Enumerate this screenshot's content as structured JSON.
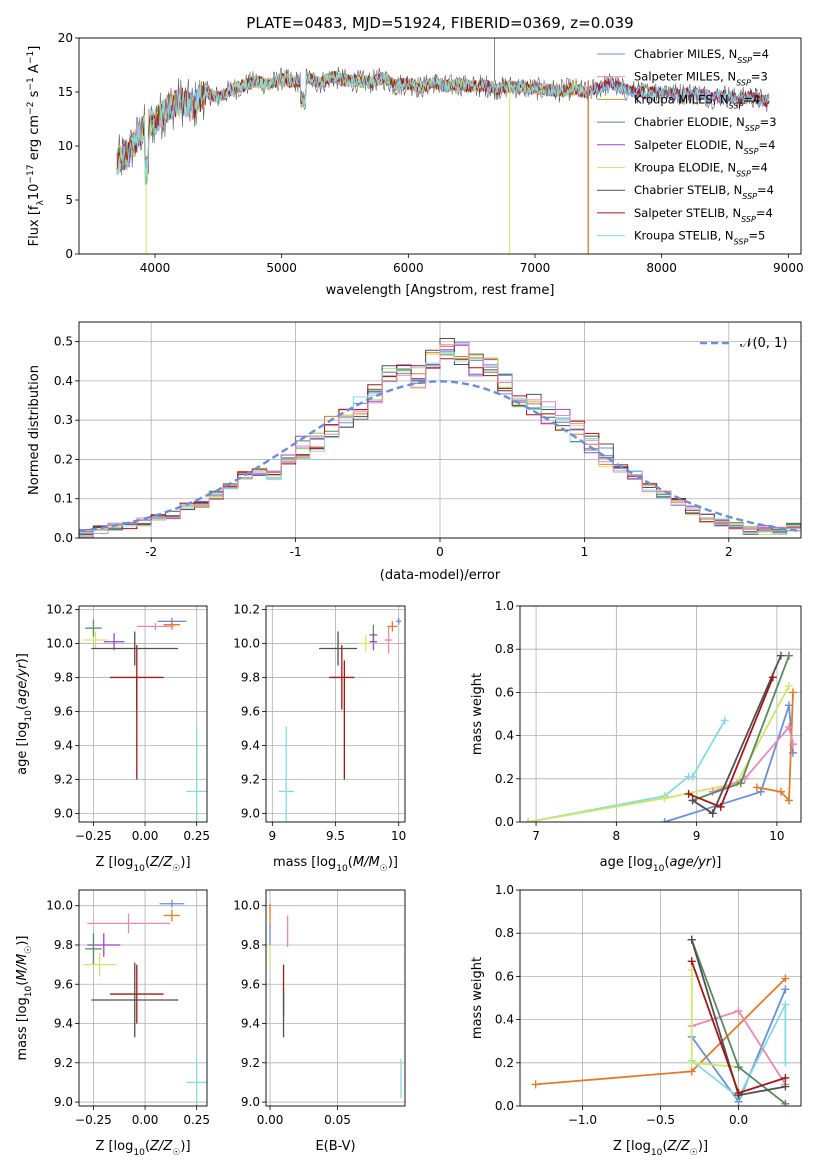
{
  "colors": {
    "blue": "#6b8fd6",
    "orange": "#e07b2a",
    "green": "#5a8a5e",
    "purple": "#9b45c8",
    "yellowgreen": "#cfe66a",
    "gray": "#505050",
    "darkred": "#a01818",
    "cyan": "#85dbe0",
    "pink": "#e68ab0",
    "olive": "#b8a030",
    "grid": "#b0b0b0"
  },
  "chart_data": [
    {
      "id": "spectrum",
      "type": "line",
      "title": "PLATE=0483, MJD=51924, FIBERID=0369, z=0.039",
      "xlabel": "wavelength [Angstrom, rest frame]",
      "ylabel": "Flux [fλ10⁻¹⁷ erg cm⁻² s⁻¹ A⁻¹]",
      "xlim": [
        3400,
        9100
      ],
      "ylim": [
        0,
        20
      ],
      "xticks": [
        4000,
        5000,
        6000,
        7000,
        8000,
        9000
      ],
      "yticks": [
        0,
        5,
        10,
        15,
        20
      ],
      "grid": false,
      "legend_loc": "right",
      "series": [
        {
          "name": "Chabrier MILES, N_SSP=4",
          "color": "#6b8fd6"
        },
        {
          "name": "Salpeter MILES, N_SSP=3",
          "color": "#e68ab0"
        },
        {
          "name": "Kroupa MILES, N_SSP=4",
          "color": "#b8a030"
        },
        {
          "name": "Chabrier ELODIE, N_SSP=3",
          "color": "#5a8a5e"
        },
        {
          "name": "Salpeter ELODIE, N_SSP=4",
          "color": "#9b45c8"
        },
        {
          "name": "Kroupa ELODIE, N_SSP=4",
          "color": "#cfe66a"
        },
        {
          "name": "Chabrier STELIB, N_SSP=4",
          "color": "#505050"
        },
        {
          "name": "Salpeter STELIB, N_SSP=4",
          "color": "#a01818"
        },
        {
          "name": "Kroupa STELIB, N_SSP=5",
          "color": "#85dbe0"
        }
      ],
      "envelope": {
        "x": [
          3700,
          3800,
          3900,
          4000,
          4100,
          4200,
          4300,
          4400,
          4500,
          4600,
          4700,
          4800,
          4900,
          5000,
          5100,
          5200,
          5300,
          5400,
          5500,
          5600,
          5700,
          5800,
          5900,
          6000,
          6100,
          6200,
          6300,
          6400,
          6500,
          6600,
          6700,
          6800,
          6900,
          7000,
          7100,
          7200,
          7300,
          7400,
          7500,
          7600,
          7700,
          7800,
          7900,
          8000,
          8100,
          8200,
          8300,
          8400,
          8500,
          8600,
          8700,
          8800
        ],
        "y": [
          8.5,
          9.5,
          11.5,
          12.3,
          13.5,
          14.2,
          13.6,
          15.0,
          14.5,
          15.2,
          15.6,
          16.0,
          15.7,
          16.2,
          15.9,
          16.3,
          15.8,
          16.4,
          16.1,
          16.0,
          15.9,
          16.3,
          15.6,
          15.8,
          15.4,
          15.9,
          15.5,
          15.7,
          15.5,
          15.6,
          15.3,
          15.5,
          15.4,
          15.3,
          15.2,
          15.1,
          15.3,
          15.0,
          15.4,
          15.8,
          15.2,
          15.0,
          14.9,
          15.1,
          14.8,
          14.9,
          14.8,
          14.5,
          14.7,
          14.3,
          14.6,
          14.2
        ]
      }
    },
    {
      "id": "residuals",
      "type": "line",
      "xlabel": "(data-model)/error",
      "ylabel": "Normed distribution",
      "xlim": [
        -2.5,
        2.5
      ],
      "ylim": [
        0,
        0.55
      ],
      "xticks": [
        -2,
        -1,
        0,
        1,
        2
      ],
      "yticks": [
        0.0,
        0.1,
        0.2,
        0.3,
        0.4,
        0.5
      ],
      "grid": true,
      "legend": "𝒩(0, 1)",
      "hist_edges_start": -2.5,
      "hist_bin_width": 0.1,
      "hist_values": [
        0.01,
        0.02,
        0.03,
        0.03,
        0.04,
        0.05,
        0.06,
        0.08,
        0.09,
        0.11,
        0.13,
        0.16,
        0.17,
        0.16,
        0.2,
        0.23,
        0.25,
        0.28,
        0.31,
        0.33,
        0.37,
        0.42,
        0.44,
        0.41,
        0.45,
        0.48,
        0.47,
        0.44,
        0.43,
        0.39,
        0.36,
        0.34,
        0.32,
        0.3,
        0.27,
        0.24,
        0.21,
        0.18,
        0.16,
        0.13,
        0.11,
        0.09,
        0.07,
        0.05,
        0.04,
        0.03,
        0.02,
        0.02,
        0.02,
        0.03
      ]
    },
    {
      "id": "age_vs_Z",
      "type": "scatter",
      "xlabel": "Z [log₁₀(Z/Z☉)]",
      "ylabel": "age  [log₁₀(age/yr)]",
      "xlim": [
        -0.32,
        0.3
      ],
      "ylim": [
        8.95,
        10.22
      ],
      "xticks": [
        -0.25,
        0.0,
        0.25
      ],
      "xticklabels": [
        "−0.25",
        "0.00",
        "0.25"
      ],
      "yticks": [
        9.0,
        9.2,
        9.4,
        9.6,
        9.8,
        10.0,
        10.2
      ],
      "grid": true,
      "points": [
        {
          "color": "#6b8fd6",
          "x": 0.13,
          "xerr": 0.07,
          "y": 10.13,
          "yerr": 0.02
        },
        {
          "color": "#e07b2a",
          "x": 0.13,
          "xerr": 0.04,
          "y": 10.11,
          "yerr": 0.03
        },
        {
          "color": "#e68ab0",
          "x": 0.05,
          "xerr": 0.09,
          "y": 10.1,
          "yerr": 0.02
        },
        {
          "color": "#5a8a5e",
          "x": -0.25,
          "xerr": 0.04,
          "y": 10.09,
          "yerr": 0.05
        },
        {
          "color": "#cfe66a",
          "x": -0.24,
          "xerr": 0.06,
          "y": 10.02,
          "yerr": 0.05
        },
        {
          "color": "#9b45c8",
          "x": -0.15,
          "xerr": 0.05,
          "y": 10.01,
          "yerr": 0.05
        },
        {
          "color": "#505050",
          "x": -0.05,
          "xerr": 0.21,
          "y": 9.97,
          "yerr": 0.1
        },
        {
          "color": "#a01818",
          "x": -0.04,
          "xerr": 0.13,
          "y": 9.8,
          "yerr": 0.19
        },
        {
          "color": "#a01818",
          "x": -0.04,
          "xerr": 0.0,
          "y": 9.5,
          "yerr": 0.3
        },
        {
          "color": "#85dbe0",
          "x": 0.25,
          "xerr": 0.05,
          "y": 9.13,
          "yerr": 0.38
        }
      ]
    },
    {
      "id": "age_vs_mass",
      "type": "scatter",
      "xlabel": "mass [log₁₀(M/M☉)]",
      "xlim": [
        8.95,
        10.05
      ],
      "ylim": [
        8.95,
        10.22
      ],
      "xticks": [
        9.0,
        9.5,
        10.0
      ],
      "yticks": [
        9.0,
        9.2,
        9.4,
        9.6,
        9.8,
        10.0,
        10.2
      ],
      "grid": true,
      "points": [
        {
          "color": "#6b8fd6",
          "x": 10.0,
          "xerr": 0.02,
          "y": 10.13,
          "yerr": 0.02
        },
        {
          "color": "#e07b2a",
          "x": 9.95,
          "xerr": 0.04,
          "y": 10.1,
          "yerr": 0.03
        },
        {
          "color": "#e68ab0",
          "x": 9.92,
          "xerr": 0.03,
          "y": 10.02,
          "yerr": 0.08
        },
        {
          "color": "#5a8a5e",
          "x": 9.8,
          "xerr": 0.03,
          "y": 10.05,
          "yerr": 0.06
        },
        {
          "color": "#9b45c8",
          "x": 9.8,
          "xerr": 0.03,
          "y": 10.01,
          "yerr": 0.05
        },
        {
          "color": "#cfe66a",
          "x": 9.74,
          "xerr": 0.06,
          "y": 10.0,
          "yerr": 0.05
        },
        {
          "color": "#505050",
          "x": 9.52,
          "xerr": 0.15,
          "y": 9.97,
          "yerr": 0.1
        },
        {
          "color": "#a01818",
          "x": 9.55,
          "xerr": 0.1,
          "y": 9.8,
          "yerr": 0.19
        },
        {
          "color": "#a01818",
          "x": 9.57,
          "xerr": 0.0,
          "y": 9.55,
          "yerr": 0.35
        },
        {
          "color": "#85dbe0",
          "x": 9.11,
          "xerr": 0.06,
          "y": 9.13,
          "yerr": 0.38
        }
      ]
    },
    {
      "id": "massweight_vs_age",
      "type": "line",
      "xlabel": "age  [log₁₀(age/yr)]",
      "ylabel": "mass weight",
      "xlim": [
        6.8,
        10.3
      ],
      "ylim": [
        0,
        1.0
      ],
      "xticks": [
        7,
        8,
        9,
        10
      ],
      "yticks": [
        0.0,
        0.2,
        0.4,
        0.6,
        0.8,
        1.0
      ],
      "grid": true,
      "series": [
        {
          "color": "#85dbe0",
          "x": [
            6.9,
            8.6,
            8.9,
            8.95,
            9.35
          ],
          "y": [
            0.0,
            0.12,
            0.21,
            0.21,
            0.47
          ]
        },
        {
          "color": "#cfe66a",
          "x": [
            6.9,
            8.6,
            9.5,
            10.15
          ],
          "y": [
            0.0,
            0.11,
            0.18,
            0.63
          ]
        },
        {
          "color": "#6b8fd6",
          "x": [
            8.6,
            9.8,
            10.15,
            10.2
          ],
          "y": [
            0.0,
            0.14,
            0.54,
            0.32
          ]
        },
        {
          "color": "#e07b2a",
          "x": [
            9.75,
            10.05,
            10.15,
            10.2
          ],
          "y": [
            0.16,
            0.14,
            0.1,
            0.6
          ]
        },
        {
          "color": "#e68ab0",
          "x": [
            9.2,
            9.6,
            10.15,
            10.2
          ],
          "y": [
            0.14,
            0.2,
            0.44,
            0.36
          ]
        },
        {
          "color": "#5a8a5e",
          "x": [
            8.95,
            9.55,
            10.15
          ],
          "y": [
            0.1,
            0.18,
            0.77
          ]
        },
        {
          "color": "#505050",
          "x": [
            8.95,
            9.2,
            10.05
          ],
          "y": [
            0.1,
            0.04,
            0.77
          ]
        },
        {
          "color": "#a01818",
          "x": [
            8.9,
            9.3,
            9.95
          ],
          "y": [
            0.13,
            0.07,
            0.67
          ]
        }
      ]
    },
    {
      "id": "mass_vs_Z",
      "type": "scatter",
      "xlabel": "Z [log₁₀(Z/Z☉)]",
      "ylabel": "mass [log₁₀(M/M☉)]",
      "xlim": [
        -0.32,
        0.3
      ],
      "ylim": [
        8.98,
        10.08
      ],
      "xticks": [
        -0.25,
        0.0,
        0.25
      ],
      "xticklabels": [
        "−0.25",
        "0.00",
        "0.25"
      ],
      "yticks": [
        9.0,
        9.2,
        9.4,
        9.6,
        9.8,
        10.0
      ],
      "grid": true,
      "points": [
        {
          "color": "#6b8fd6",
          "x": 0.13,
          "xerr": 0.06,
          "y": 10.01,
          "yerr": 0.02
        },
        {
          "color": "#e07b2a",
          "x": 0.13,
          "xerr": 0.04,
          "y": 9.95,
          "yerr": 0.03
        },
        {
          "color": "#e68ab0",
          "x": -0.08,
          "xerr": 0.2,
          "y": 9.91,
          "yerr": 0.05
        },
        {
          "color": "#9b45c8",
          "x": -0.2,
          "xerr": 0.08,
          "y": 9.8,
          "yerr": 0.06
        },
        {
          "color": "#5a8a5e",
          "x": -0.25,
          "xerr": 0.04,
          "y": 9.78,
          "yerr": 0.08
        },
        {
          "color": "#cfe66a",
          "x": -0.22,
          "xerr": 0.08,
          "y": 9.7,
          "yerr": 0.06
        },
        {
          "color": "#a01818",
          "x": -0.04,
          "xerr": 0.13,
          "y": 9.55,
          "yerr": 0.15
        },
        {
          "color": "#505050",
          "x": -0.05,
          "xerr": 0.21,
          "y": 9.52,
          "yerr": 0.19
        },
        {
          "color": "#85dbe0",
          "x": 0.25,
          "xerr": 0.05,
          "y": 9.1,
          "yerr": 0.12
        }
      ]
    },
    {
      "id": "mass_vs_ebv",
      "type": "scatter",
      "xlabel": "E(B-V)",
      "xlim": [
        -0.003,
        0.1
      ],
      "ylim": [
        8.98,
        10.08
      ],
      "xticks": [
        0.0,
        0.05
      ],
      "xticklabels": [
        "0.00",
        "0.05"
      ],
      "yticks": [
        9.0,
        9.2,
        9.4,
        9.6,
        9.8,
        10.0
      ],
      "grid": true,
      "points": [
        {
          "color": "#e07b2a",
          "x": 0.0,
          "xerr": 0.0,
          "y": 9.95,
          "yerr": 0.06
        },
        {
          "color": "#6b8fd6",
          "x": 0.0,
          "xerr": 0.0,
          "y": 9.85,
          "yerr": 0.05
        },
        {
          "color": "#e68ab0",
          "x": 0.013,
          "xerr": 0.0,
          "y": 9.87,
          "yerr": 0.08
        },
        {
          "color": "#cfe66a",
          "x": 0.0,
          "xerr": 0.0,
          "y": 9.75,
          "yerr": 0.05
        },
        {
          "color": "#a01818",
          "x": 0.01,
          "xerr": 0.0,
          "y": 9.57,
          "yerr": 0.13
        },
        {
          "color": "#505050",
          "x": 0.01,
          "xerr": 0.0,
          "y": 9.45,
          "yerr": 0.12
        },
        {
          "color": "#85dbe0",
          "x": 0.097,
          "xerr": 0.0,
          "y": 9.12,
          "yerr": 0.1
        }
      ]
    },
    {
      "id": "massweight_vs_Z",
      "type": "line",
      "xlabel": "Z [log₁₀(Z/Z☉)]",
      "ylabel": "mass weight",
      "xlim": [
        -1.4,
        0.4
      ],
      "ylim": [
        0,
        1.0
      ],
      "xticks": [
        -1.0,
        -0.5,
        0.0
      ],
      "xticklabels": [
        "−1.0",
        "−0.5",
        "0.0"
      ],
      "yticks": [
        0.0,
        0.2,
        0.4,
        0.6,
        0.8,
        1.0
      ],
      "grid": true,
      "series": [
        {
          "color": "#e07b2a",
          "x": [
            -1.3,
            -0.3,
            0.3
          ],
          "y": [
            0.1,
            0.16,
            0.59
          ]
        },
        {
          "color": "#6b8fd6",
          "x": [
            -0.3,
            0.0,
            0.3
          ],
          "y": [
            0.32,
            0.02,
            0.54
          ]
        },
        {
          "color": "#85dbe0",
          "x": [
            -0.3,
            0.0,
            0.3,
            0.3
          ],
          "y": [
            0.21,
            0.04,
            0.47,
            0.2
          ]
        },
        {
          "color": "#e68ab0",
          "x": [
            -0.3,
            0.0,
            0.3
          ],
          "y": [
            0.37,
            0.44,
            0.1
          ]
        },
        {
          "color": "#cfe66a",
          "x": [
            -0.3,
            -0.3,
            0.0
          ],
          "y": [
            0.63,
            0.2,
            0.18
          ]
        },
        {
          "color": "#5a8a5e",
          "x": [
            -0.3,
            0.0,
            0.3
          ],
          "y": [
            0.77,
            0.18,
            0.01
          ]
        },
        {
          "color": "#505050",
          "x": [
            -0.3,
            0.0,
            0.3
          ],
          "y": [
            0.77,
            0.05,
            0.09
          ]
        },
        {
          "color": "#a01818",
          "x": [
            -0.3,
            0.0,
            0.3
          ],
          "y": [
            0.67,
            0.06,
            0.13
          ]
        }
      ]
    }
  ]
}
